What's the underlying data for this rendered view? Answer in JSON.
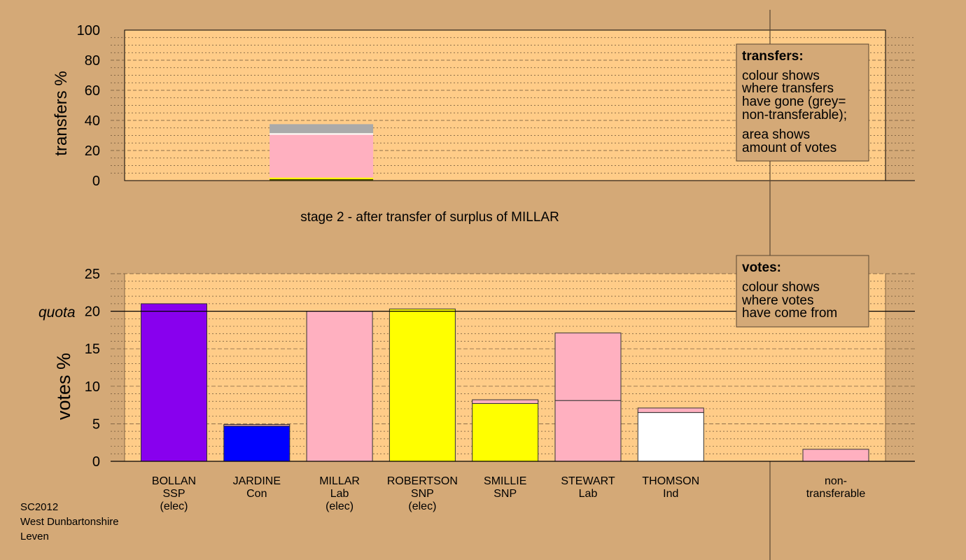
{
  "colors": {
    "background": "#d4a977",
    "plot_bg": "#ffcc88",
    "grey": "#aaaaaa",
    "pink": "#ffb0c0",
    "yellow": "#ffff00",
    "purple": "#8800ee",
    "blue": "#0000ff",
    "white": "#ffffff"
  },
  "footer": [
    "SC2012",
    "West Dunbartonshire",
    "Leven"
  ],
  "chart_data": [
    {
      "type": "bar",
      "id": "transfers",
      "ylabel": "transfers %",
      "ylim": [
        0,
        100
      ],
      "yticks": [
        0,
        20,
        40,
        60,
        80,
        100
      ],
      "grid": true,
      "subtitle": "stage 2 - after transfer of surplus of MILLAR",
      "stack": {
        "category": "MILLAR",
        "segments": [
          {
            "from": 0,
            "to": 2,
            "color": "yellow",
            "goes_to": "SMILLIE"
          },
          {
            "from": 2,
            "to": 30.5,
            "color": "pink",
            "goes_to": "STEWART"
          },
          {
            "from": 30.5,
            "to": 31.5,
            "color": "white",
            "goes_to": "THOMSON"
          },
          {
            "from": 31.5,
            "to": 37.5,
            "color": "grey",
            "goes_to": "non-transferable"
          }
        ]
      },
      "legend": {
        "title": "transfers:",
        "lines": [
          "colour shows",
          "where transfers",
          "have gone (grey=",
          "non-transferable);",
          "area shows",
          "amount of votes"
        ],
        "placement": "top-right"
      }
    },
    {
      "type": "bar",
      "id": "votes",
      "ylabel": "votes %",
      "ylim": [
        0,
        25
      ],
      "yticks": [
        0,
        5,
        10,
        15,
        20,
        25
      ],
      "quota": 20,
      "quota_label": "quota",
      "grid": true,
      "categories": [
        {
          "lines": [
            "BOLLAN",
            "SSP",
            "(elec)"
          ],
          "segments": [
            {
              "value": 21.0,
              "color": "purple"
            }
          ]
        },
        {
          "lines": [
            "JARDINE",
            "Con"
          ],
          "segments": [
            {
              "value": 4.7,
              "color": "blue"
            },
            {
              "value": 0.2,
              "color": "pink"
            }
          ]
        },
        {
          "lines": [
            "MILLAR",
            "Lab",
            "(elec)"
          ],
          "segments": [
            {
              "value": 20.0,
              "color": "pink"
            }
          ]
        },
        {
          "lines": [
            "ROBERTSON",
            "SNP",
            "(elec)"
          ],
          "segments": [
            {
              "value": 20.3,
              "color": "yellow"
            }
          ]
        },
        {
          "lines": [
            "SMILLIE",
            "SNP"
          ],
          "segments": [
            {
              "value": 7.7,
              "color": "yellow"
            },
            {
              "value": 0.5,
              "color": "pink"
            }
          ]
        },
        {
          "lines": [
            "STEWART",
            "Lab"
          ],
          "segments": [
            {
              "value": 8.1,
              "color": "pink"
            },
            {
              "value": 9.0,
              "color": "pink"
            }
          ]
        },
        {
          "lines": [
            "THOMSON",
            "Ind"
          ],
          "segments": [
            {
              "value": 6.5,
              "color": "white"
            },
            {
              "value": 0.6,
              "color": "pink"
            }
          ]
        },
        {
          "lines": [
            "non-",
            "transferable"
          ],
          "segments": [
            {
              "value": 1.6,
              "color": "pink"
            }
          ]
        }
      ],
      "legend": {
        "title": "votes:",
        "lines": [
          "colour shows",
          "where votes",
          "have come from"
        ],
        "placement": "top-right"
      }
    }
  ]
}
